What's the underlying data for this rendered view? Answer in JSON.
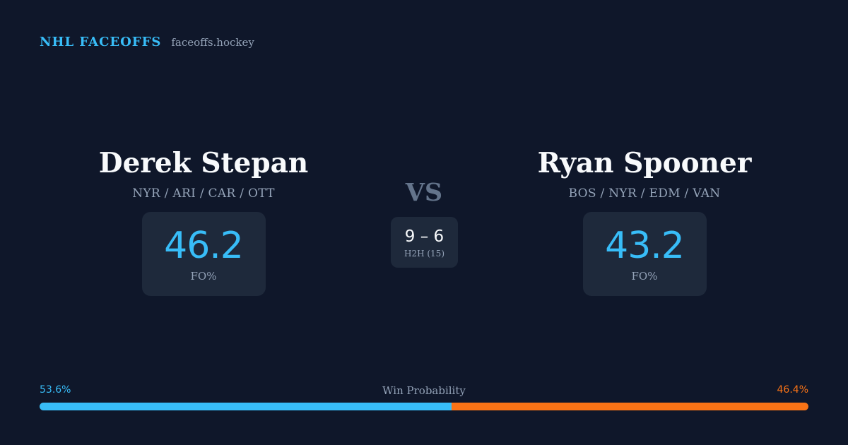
{
  "brand": {
    "name": "NHL FACEOFFS",
    "site": "faceoffs.hockey"
  },
  "player_left": {
    "name": "Derek Stepan",
    "teams": "NYR / ARI / CAR / OTT",
    "stat_value": "46.2",
    "stat_label": "FO%"
  },
  "player_right": {
    "name": "Ryan Spooner",
    "teams": "BOS / NYR / EDM / VAN",
    "stat_value": "43.2",
    "stat_label": "FO%"
  },
  "versus": {
    "label": "VS",
    "h2h_score": "9 – 6",
    "h2h_label": "H2H (15)"
  },
  "win_probability": {
    "title": "Win Probability",
    "left_label": "53.6%",
    "right_label": "46.4%",
    "left_fraction": 0.536,
    "left_color": "#38bdf8",
    "right_color": "#f97316"
  }
}
